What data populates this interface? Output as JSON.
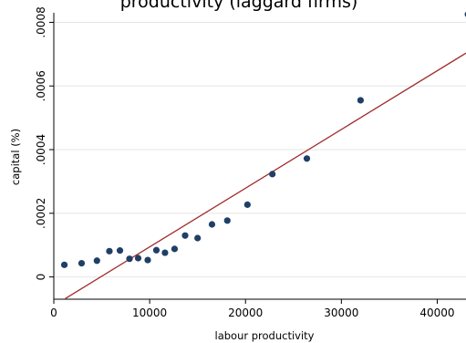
{
  "chart_data": {
    "type": "scatter",
    "title": "productivity (laggard firms)",
    "xlabel": "labour productivity",
    "ylabel": "capital  (%)",
    "xlim": [
      0,
      43000
    ],
    "ylim": [
      -7e-05,
      0.00083
    ],
    "x_ticks": [
      0,
      10000,
      20000,
      30000,
      40000
    ],
    "x_tick_labels": [
      "0",
      "10000",
      "20000",
      "30000",
      "40000"
    ],
    "y_ticks": [
      0,
      0.0002,
      0.0004,
      0.0006,
      0.0008
    ],
    "y_tick_labels": [
      "0",
      ".0002",
      ".0004",
      ".0006",
      ".0008"
    ],
    "grid": true,
    "legend": "none",
    "colors": {
      "marker": "#1f3f66",
      "fit_line": "#a02b2b",
      "grid": "#e6e6e6"
    },
    "points": [
      {
        "x": 1100,
        "y": 3.8e-05
      },
      {
        "x": 2900,
        "y": 4.3e-05
      },
      {
        "x": 4500,
        "y": 5.1e-05
      },
      {
        "x": 5800,
        "y": 8.1e-05
      },
      {
        "x": 6900,
        "y": 8.3e-05
      },
      {
        "x": 7900,
        "y": 5.7e-05
      },
      {
        "x": 8800,
        "y": 5.9e-05
      },
      {
        "x": 9800,
        "y": 5.3e-05
      },
      {
        "x": 10700,
        "y": 8.4e-05
      },
      {
        "x": 11600,
        "y": 7.6e-05
      },
      {
        "x": 12600,
        "y": 8.8e-05
      },
      {
        "x": 13700,
        "y": 0.00013
      },
      {
        "x": 15000,
        "y": 0.000122
      },
      {
        "x": 16500,
        "y": 0.000165
      },
      {
        "x": 18100,
        "y": 0.000177
      },
      {
        "x": 20200,
        "y": 0.000227
      },
      {
        "x": 22800,
        "y": 0.000323
      },
      {
        "x": 26400,
        "y": 0.000372
      },
      {
        "x": 32000,
        "y": 0.000555
      },
      {
        "x": 43200,
        "y": 0.000825
      }
    ],
    "fit_line": {
      "x": [
        1200,
        43200
      ],
      "y": [
        -6.8e-05,
        0.000707
      ]
    }
  }
}
